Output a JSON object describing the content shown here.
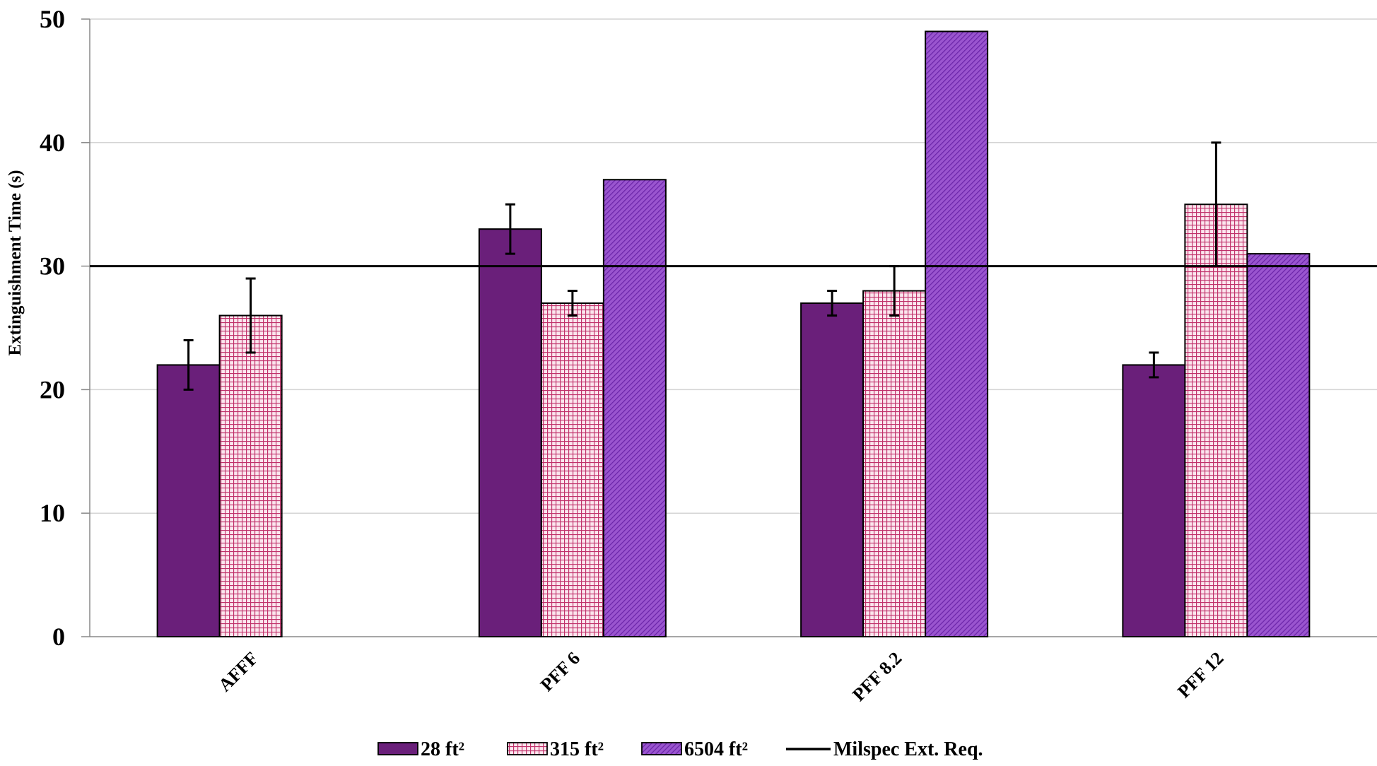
{
  "chart_data": {
    "type": "bar",
    "title": "",
    "xlabel": "",
    "ylabel": "Extinguishment Time (s)",
    "ylim": [
      0,
      50
    ],
    "yticks": [
      0,
      10,
      20,
      30,
      40,
      50
    ],
    "grid": true,
    "categories": [
      "AFFF",
      "PFF 6",
      "PFF 8.2",
      "PFF 12"
    ],
    "series": [
      {
        "name": "28 ft²",
        "color": "#6a1f7a",
        "pattern": "solid",
        "values": [
          22,
          33,
          27,
          22
        ],
        "err": [
          2,
          2,
          1,
          1
        ]
      },
      {
        "name": "315 ft²",
        "color": "#c0306a",
        "pattern": "grid",
        "values": [
          26,
          27,
          28,
          35
        ],
        "err": [
          3,
          1,
          2,
          5
        ]
      },
      {
        "name": "6504 ft²",
        "color": "#8a3fc0",
        "pattern": "diagonal",
        "values": [
          null,
          37,
          49,
          31
        ],
        "err": [
          null,
          null,
          null,
          null
        ]
      }
    ],
    "reference_line": {
      "name": "Milspec Ext. Req.",
      "value": 30,
      "color": "#000000"
    },
    "legend_position": "bottom-center"
  }
}
